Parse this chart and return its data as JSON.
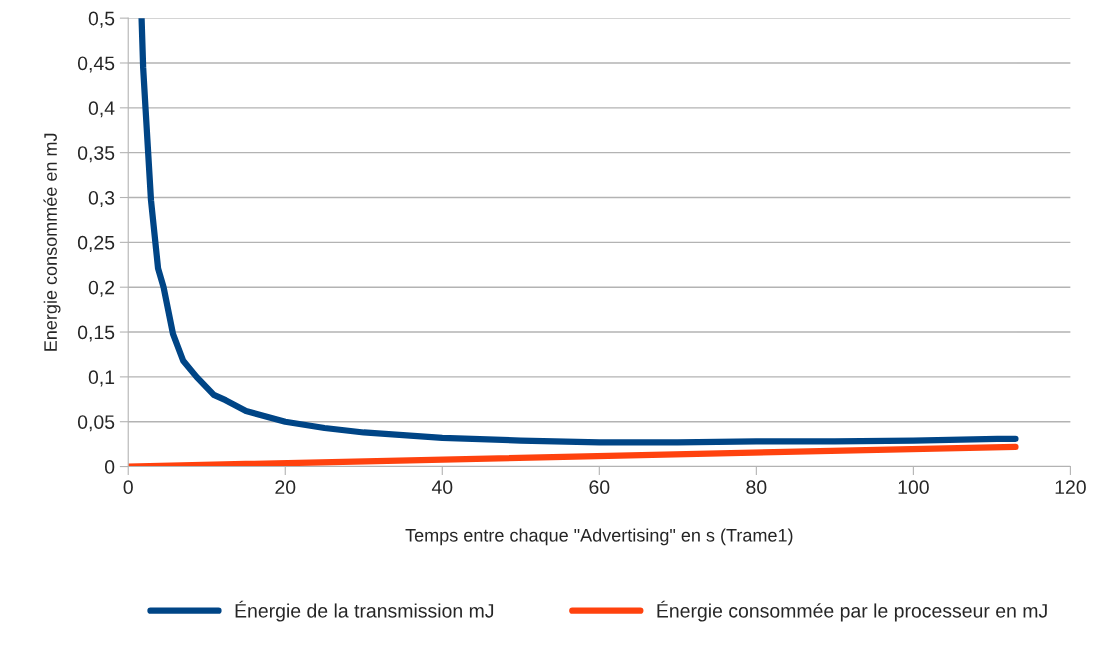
{
  "chart_data": {
    "type": "line",
    "xlabel": "Temps entre chaque \"Advertising\" en s (Trame1)",
    "ylabel": "Energie consommée en mJ",
    "xlim": [
      0,
      120
    ],
    "xticks": [
      0,
      20,
      40,
      60,
      80,
      100,
      120
    ],
    "ylim": [
      0,
      0.5
    ],
    "yticks": [
      {
        "value": 0,
        "label": "0"
      },
      {
        "value": 0.05,
        "label": "0,05"
      },
      {
        "value": 0.1,
        "label": "0,1"
      },
      {
        "value": 0.15,
        "label": "0,15"
      },
      {
        "value": 0.2,
        "label": "0,2"
      },
      {
        "value": 0.25,
        "label": "0,25"
      },
      {
        "value": 0.3,
        "label": "0,3"
      },
      {
        "value": 0.35,
        "label": "0,35"
      },
      {
        "value": 0.4,
        "label": "0,4"
      },
      {
        "value": 0.45,
        "label": "0,45"
      },
      {
        "value": 0.5,
        "label": "0,5"
      }
    ],
    "grid": "y",
    "legend": "bottom",
    "marker": "none",
    "line_style": "solid",
    "series": [
      {
        "name": "Énergie de la transmission mJ",
        "color": "#004586",
        "x": [
          1.7,
          1.9,
          2.2,
          2.9,
          3.8,
          4.5,
          5.7,
          7,
          8.7,
          10.9,
          12.4,
          15,
          20,
          25,
          30,
          40,
          50,
          60,
          70,
          80,
          90,
          100,
          110.7,
          113
        ],
        "values": [
          0.5,
          0.445,
          0.4,
          0.297,
          0.221,
          0.2,
          0.148,
          0.118,
          0.1,
          0.08,
          0.074,
          0.062,
          0.05,
          0.043,
          0.038,
          0.032,
          0.029,
          0.027,
          0.027,
          0.028,
          0.028,
          0.029,
          0.031,
          0.031
        ]
      },
      {
        "name": "Énergie consommée par le processeur en mJ",
        "color": "#ff420e",
        "x": [
          0,
          113
        ],
        "values": [
          0,
          0.022
        ]
      }
    ]
  }
}
